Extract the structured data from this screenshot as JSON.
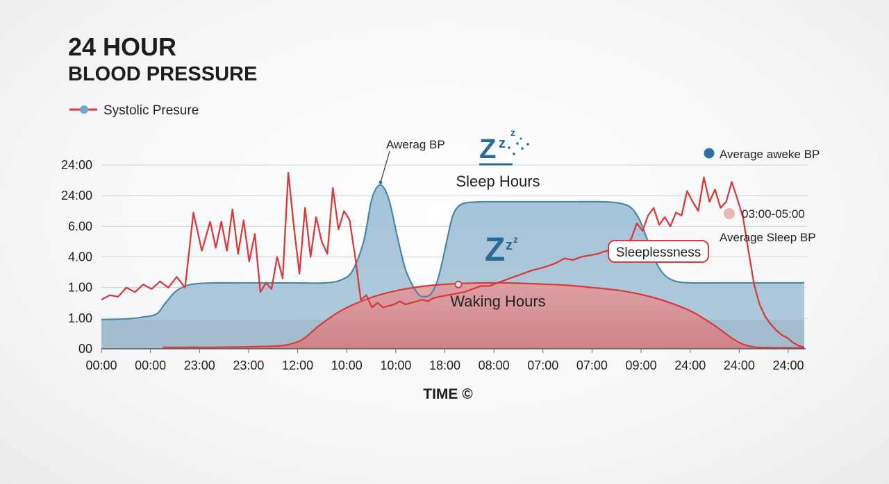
{
  "chart_data": {
    "type": "area",
    "title": "24 HOUR",
    "subtitle": "BLOOD PRESSURE",
    "xlabel": "TIME ©",
    "ylabel": "",
    "grid": true,
    "legend_position": "top-left",
    "legend": {
      "systolic_label": "Systolic Presure"
    },
    "y_tick_labels": [
      "24:00",
      "24:00",
      "6.00",
      "4.00",
      "1.00",
      "1.00",
      "00"
    ],
    "x_tick_labels": [
      "00:00",
      "00:00",
      "23:00",
      "23:00",
      "12:00",
      "10:00",
      "10:00",
      "18:00",
      "08:00",
      "07:00",
      "07:00",
      "09:00",
      "24:00",
      "24:00",
      "24:00"
    ],
    "ylim": [
      0,
      6
    ],
    "series": [
      {
        "name": "Systolic Presure",
        "color": "#d8393b",
        "x": [
          0,
          0.15,
          0.3,
          0.45,
          0.6,
          0.75,
          0.9,
          1.05,
          1.2,
          1.35,
          1.5,
          1.65,
          1.8,
          1.95,
          2.05,
          2.15,
          2.25,
          2.35,
          2.45,
          2.55,
          2.65,
          2.75,
          2.85,
          2.95,
          3.05,
          3.15,
          3.25,
          3.35,
          3.45,
          3.55,
          3.65,
          3.75,
          3.85,
          3.95,
          4.05,
          4.15,
          4.25,
          4.35,
          4.45,
          4.55,
          4.65,
          4.75,
          4.85,
          4.95,
          5.05,
          5.15,
          5.25,
          5.35,
          5.45,
          5.55,
          5.65,
          5.75,
          5.85,
          5.95,
          6.05,
          6.2,
          6.35,
          6.5,
          6.65,
          6.8,
          6.95,
          7.1,
          7.25,
          7.4,
          7.55,
          7.7,
          7.85,
          8.0,
          8.15,
          8.3,
          8.45,
          8.6,
          8.75,
          8.9,
          9.05,
          9.2,
          9.35,
          9.5,
          9.6,
          9.7,
          9.8,
          9.9,
          10.0,
          10.1,
          10.2,
          10.3,
          10.4,
          10.5,
          10.6,
          10.7,
          10.8,
          10.9,
          11.0,
          11.1,
          11.2,
          11.3,
          11.4,
          11.5,
          11.6,
          11.7,
          11.8,
          11.9,
          12.0,
          12.1,
          12.2,
          12.3,
          12.4,
          12.5,
          12.6
        ],
        "values": [
          1.6,
          1.75,
          1.7,
          2.0,
          1.85,
          2.1,
          1.95,
          2.2,
          2.0,
          2.35,
          2.0,
          4.45,
          3.2,
          4.15,
          3.3,
          4.15,
          3.2,
          4.55,
          3.1,
          4.2,
          2.85,
          3.75,
          1.85,
          2.15,
          1.95,
          3.0,
          2.3,
          5.75,
          4.0,
          2.45,
          4.6,
          3.0,
          4.3,
          3.5,
          3.1,
          5.25,
          3.9,
          4.5,
          4.2,
          3.0,
          1.6,
          1.75,
          1.35,
          1.5,
          1.35,
          1.4,
          1.45,
          1.55,
          1.45,
          1.5,
          1.55,
          1.6,
          1.55,
          1.65,
          1.7,
          1.75,
          1.8,
          1.85,
          1.95,
          2.05,
          2.05,
          2.15,
          2.25,
          2.35,
          2.45,
          2.55,
          2.62,
          2.7,
          2.8,
          2.95,
          2.9,
          3.0,
          3.05,
          3.1,
          3.2,
          3.15,
          3.3,
          3.6,
          4.1,
          3.85,
          4.35,
          4.6,
          4.05,
          4.3,
          4.0,
          4.45,
          4.35,
          5.15,
          4.8,
          4.5,
          5.6,
          4.8,
          5.2,
          4.6,
          4.8,
          5.45,
          4.9,
          4.3,
          3.2,
          2.1,
          1.45,
          1.05,
          0.8,
          0.6,
          0.45,
          0.35,
          0.2,
          0.1,
          0.05
        ]
      },
      {
        "name": "",
        "type": "area",
        "color": "#4a86a8",
        "x": [
          0,
          0.5,
          0.8,
          1.0,
          1.15,
          1.35,
          1.6,
          2.0,
          2.5,
          3.0,
          3.5,
          4.0,
          4.3,
          4.5,
          4.7,
          4.85,
          5.0,
          5.15,
          5.3,
          5.45,
          5.6,
          5.7,
          5.8,
          5.9,
          6.0,
          6.1,
          6.2,
          6.3,
          6.4,
          6.5,
          6.6,
          6.7,
          6.8,
          7.0,
          7.5,
          8.0,
          8.5,
          9.0,
          9.3,
          9.5,
          9.65,
          9.8,
          9.95,
          10.1,
          10.3,
          10.6,
          11.0,
          11.5,
          12.0,
          12.6
        ],
        "values": [
          0.95,
          0.98,
          1.05,
          1.15,
          1.5,
          1.9,
          2.1,
          2.15,
          2.15,
          2.15,
          2.15,
          2.15,
          2.25,
          2.55,
          3.5,
          4.9,
          5.35,
          4.9,
          3.7,
          2.6,
          2.0,
          1.75,
          1.7,
          1.78,
          2.1,
          2.75,
          3.6,
          4.35,
          4.65,
          4.75,
          4.78,
          4.79,
          4.8,
          4.8,
          4.8,
          4.8,
          4.8,
          4.8,
          4.75,
          4.6,
          4.2,
          3.5,
          2.8,
          2.4,
          2.2,
          2.15,
          2.15,
          2.15,
          2.15,
          2.15
        ]
      },
      {
        "name": "",
        "type": "area",
        "color": "#d8393b",
        "x": [
          1.1,
          2.0,
          2.5,
          3.0,
          3.3,
          3.6,
          3.9,
          4.3,
          4.8,
          5.3,
          5.8,
          6.3,
          6.8,
          7.3,
          7.8,
          8.3,
          8.8,
          9.3,
          9.8,
          10.2,
          10.6,
          11.0,
          11.3,
          11.5,
          11.7,
          11.9,
          12.1,
          12.3,
          12.6
        ],
        "values": [
          0.05,
          0.05,
          0.06,
          0.08,
          0.12,
          0.3,
          0.75,
          1.25,
          1.65,
          1.9,
          2.05,
          2.12,
          2.15,
          2.15,
          2.12,
          2.08,
          2.0,
          1.9,
          1.72,
          1.5,
          1.2,
          0.75,
          0.35,
          0.15,
          0.06,
          0.04,
          0.03,
          0.03,
          0.03
        ]
      }
    ]
  },
  "annotations": {
    "average_bp": "Awerag BP",
    "sleep_hours": "Sleep Hours",
    "waking_hours": "Waking Hours",
    "sleeplessness": "Sleeplessness",
    "average_awake_bp": "Average aweke BP",
    "sleep_window": "03:00-05:00",
    "average_sleep_bp": "Average Sleep BP"
  },
  "colors": {
    "systolic": "#d8393b",
    "blue_area": "#4a86a8",
    "blue_fill": "#a8c6da",
    "red_fill": "#d98a8c",
    "sleep_icon": "#2a6b95",
    "awake_dot": "#2e6f9c",
    "sleep_dot": "#eab8b8"
  },
  "icons": [
    "zzz-sleep-icon",
    "zzz-sleep-icon-small"
  ]
}
